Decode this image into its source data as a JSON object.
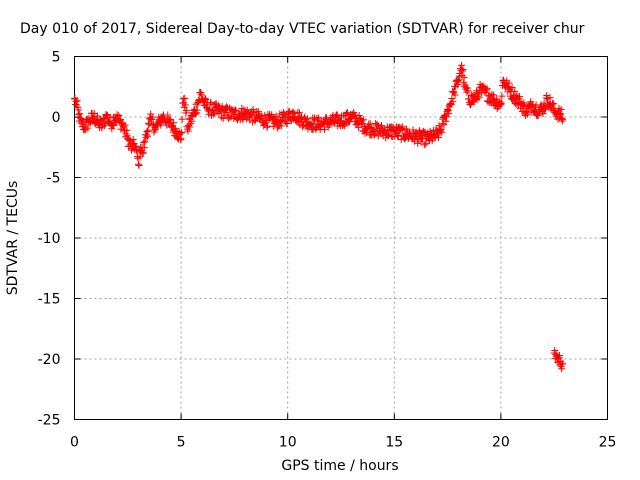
{
  "chart_data": {
    "type": "scatter",
    "title": "Day 010 of 2017, Sidereal Day-to-day VTEC variation (SDTVAR) for receiver chur",
    "xlabel": "GPS time / hours",
    "ylabel": "SDTVAR / TECUs",
    "xlim": [
      0,
      25
    ],
    "ylim": [
      -25,
      5
    ],
    "x_ticks": [
      0,
      5,
      10,
      15,
      20,
      25
    ],
    "y_ticks": [
      -25,
      -20,
      -15,
      -10,
      -5,
      0,
      5
    ],
    "x_tick_labels": [
      "0",
      "5",
      "10",
      "15",
      "20",
      "25"
    ],
    "y_tick_labels": [
      "-25",
      "-20",
      "-15",
      "-10",
      "-5",
      "0",
      "5"
    ],
    "grid": true,
    "marker": "+",
    "series": [
      {
        "name": "SDTVAR",
        "color": "#ff0000",
        "x": [
          0.0,
          0.1,
          0.2,
          0.3,
          0.5,
          0.7,
          0.9,
          1.1,
          1.3,
          1.5,
          1.7,
          1.9,
          2.1,
          2.3,
          2.5,
          2.7,
          2.8,
          2.9,
          3.0,
          3.1,
          3.2,
          3.3,
          3.4,
          3.5,
          3.6,
          3.7,
          3.8,
          4.0,
          4.2,
          4.4,
          4.6,
          4.8,
          5.0,
          5.1,
          5.2,
          5.3,
          5.8,
          5.9,
          6.0,
          6.2,
          6.5,
          7.0,
          7.5,
          8.0,
          8.5,
          9.0,
          9.5,
          10.0,
          10.3,
          10.6,
          11.0,
          11.5,
          12.0,
          12.5,
          13.0,
          13.3,
          13.6,
          14.0,
          14.5,
          15.0,
          15.5,
          16.0,
          16.5,
          17.0,
          17.2,
          17.4,
          17.6,
          17.8,
          18.0,
          18.1,
          18.2,
          18.3,
          18.5,
          18.8,
          19.0,
          19.3,
          19.6,
          20.0,
          20.1,
          20.3,
          20.6,
          20.9,
          21.2,
          21.5,
          21.8,
          22.0,
          22.2,
          22.5,
          22.8,
          22.9,
          22.5,
          22.6,
          22.7,
          22.8,
          22.9
        ],
        "y": [
          1.5,
          1.0,
          0.2,
          -0.5,
          -0.8,
          -0.3,
          0.0,
          -0.5,
          -0.7,
          0.1,
          -0.6,
          0.0,
          -0.3,
          -0.8,
          -1.8,
          -2.6,
          -2.2,
          -2.8,
          -3.9,
          -2.5,
          -3.0,
          -2.0,
          -1.2,
          -0.6,
          -0.2,
          -0.6,
          -1.0,
          -0.3,
          0.0,
          -0.4,
          -0.8,
          -1.2,
          -1.8,
          1.5,
          1.0,
          -1.0,
          1.2,
          2.0,
          1.5,
          0.8,
          0.6,
          0.4,
          0.2,
          0.3,
          0.0,
          -0.3,
          -0.4,
          0.0,
          0.3,
          -0.2,
          -0.5,
          -0.6,
          -0.4,
          -0.3,
          0.0,
          -0.3,
          -0.8,
          -1.0,
          -1.2,
          -1.2,
          -1.4,
          -1.6,
          -1.8,
          -1.5,
          -1.0,
          0.0,
          1.0,
          2.0,
          3.0,
          4.0,
          3.8,
          2.5,
          1.5,
          1.5,
          2.2,
          2.0,
          1.5,
          1.0,
          3.0,
          2.5,
          1.8,
          1.2,
          0.5,
          1.0,
          0.5,
          0.8,
          1.5,
          0.5,
          0.2,
          -0.2,
          -19.5,
          -19.8,
          -20.0,
          -20.2,
          -20.4
        ]
      }
    ]
  }
}
